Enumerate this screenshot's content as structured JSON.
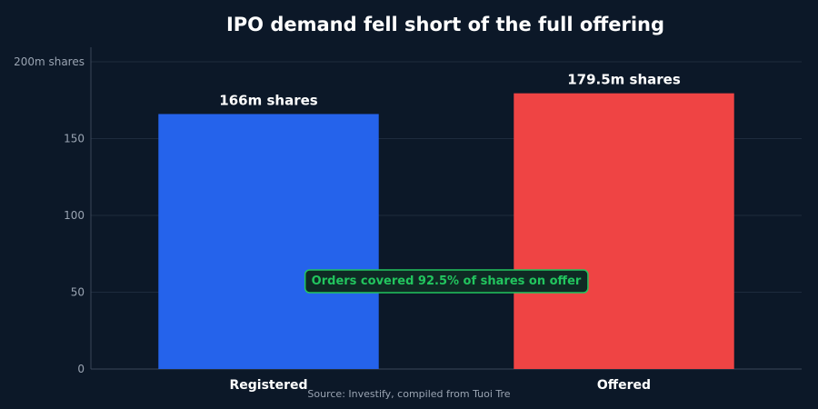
{
  "chart_data": {
    "type": "bar",
    "title": "IPO demand fell short of the full offering",
    "categories": [
      "Registered",
      "Offered"
    ],
    "values": [
      166,
      179.5
    ],
    "value_labels": [
      "166m shares",
      "179.5m shares"
    ],
    "colors": [
      "#2563eb",
      "#ef4444"
    ],
    "ylim": [
      0,
      200
    ],
    "yticks": [
      0,
      50,
      100,
      150,
      200
    ],
    "ytick_labels": [
      "0",
      "50",
      "100",
      "150",
      "200m shares"
    ],
    "grid": true,
    "annotation": {
      "text": "Orders covered 92.5% of shares on offer",
      "color": "#22c55e"
    },
    "source": "Source: Investify, compiled from Tuoi Tre"
  }
}
